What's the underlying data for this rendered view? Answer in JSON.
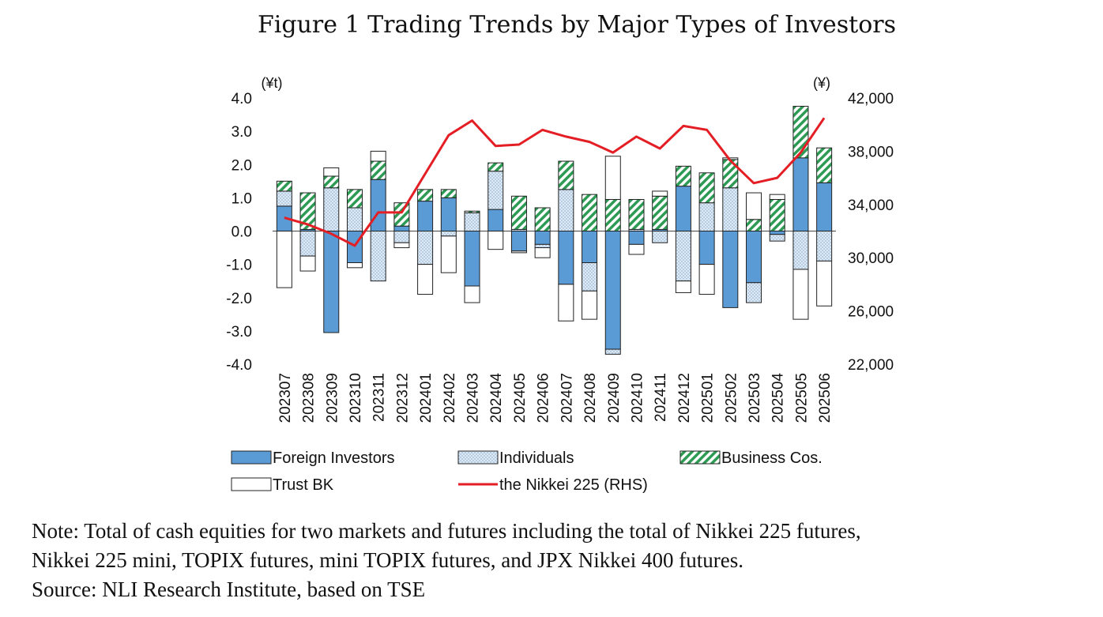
{
  "title": "Figure 1 Trading Trends by Major Types of Investors",
  "note": {
    "line1": "Note: Total of cash equities for two markets and futures including the total of Nikkei 225 futures,",
    "line2": "Nikkei 225 mini, TOPIX futures, mini TOPIX futures, and JPX Nikkei 400 futures.",
    "source": "Source: NLI Research Institute, based on TSE"
  },
  "colors": {
    "foreign": "#5b9bd5",
    "foreign_edge": "#1f1f1f",
    "individuals": "#dde9f5",
    "business_a": "#2e9b55",
    "business_b": "#ffffff",
    "trust": "#ffffff",
    "nikkei": "#e31e24"
  },
  "chart_data": {
    "type": "bar",
    "stacked": true,
    "categories": [
      "202307",
      "202308",
      "202309",
      "202310",
      "202311",
      "202312",
      "202401",
      "202402",
      "202403",
      "202404",
      "202405",
      "202406",
      "202407",
      "202408",
      "202409",
      "202410",
      "202411",
      "202412",
      "202501",
      "202502",
      "202503",
      "202504",
      "202505",
      "202506"
    ],
    "left_axis": {
      "unit": "(¥t)",
      "ylim": [
        -4.0,
        4.0
      ],
      "ticks": [
        "4.0",
        "3.0",
        "2.0",
        "1.0",
        "0.0",
        "-1.0",
        "-2.0",
        "-3.0",
        "-4.0"
      ]
    },
    "right_axis": {
      "unit": "(¥)",
      "ylim": [
        22000,
        42000
      ],
      "ticks": [
        "42,000",
        "38,000",
        "34,000",
        "30,000",
        "26,000",
        "22,000"
      ]
    },
    "series": [
      {
        "name": "Foreign Investors",
        "key": "foreign",
        "values": [
          0.75,
          0.05,
          -3.05,
          -0.95,
          1.55,
          0.15,
          0.9,
          1.0,
          -1.65,
          0.65,
          -0.6,
          -0.4,
          -1.6,
          -0.95,
          -3.55,
          -0.4,
          0.05,
          1.35,
          -1.0,
          -2.3,
          -1.55,
          -0.1,
          2.2,
          1.45
        ]
      },
      {
        "name": "Individuals",
        "key": "individuals",
        "values": [
          0.45,
          -0.75,
          1.3,
          0.7,
          -1.5,
          -0.35,
          -1.0,
          -0.15,
          0.55,
          1.15,
          0.05,
          -0.1,
          1.25,
          -0.85,
          -0.15,
          0.05,
          -0.35,
          -1.5,
          0.85,
          1.3,
          -0.6,
          -0.2,
          -1.15,
          -0.9
        ]
      },
      {
        "name": "Business Cos.",
        "key": "business",
        "values": [
          0.3,
          1.1,
          0.35,
          0.55,
          0.55,
          0.7,
          0.35,
          0.25,
          0.05,
          0.25,
          1.0,
          0.7,
          0.85,
          1.1,
          0.95,
          0.9,
          1.0,
          0.6,
          0.9,
          0.85,
          0.35,
          0.95,
          1.55,
          1.05
        ]
      },
      {
        "name": "Trust BK",
        "key": "trust",
        "values": [
          -1.7,
          -0.45,
          0.25,
          -0.15,
          0.3,
          -0.15,
          -0.9,
          -1.1,
          -0.5,
          -0.55,
          -0.05,
          -0.3,
          -1.1,
          -0.85,
          1.3,
          -0.3,
          0.15,
          -0.35,
          -0.9,
          0.05,
          0.8,
          0.15,
          -1.5,
          -1.35
        ]
      }
    ],
    "line": {
      "name": "the Nikkei 225 (RHS)",
      "axis": "right",
      "values": [
        33000,
        32500,
        31800,
        30900,
        33400,
        33400,
        36300,
        39200,
        40300,
        38400,
        38500,
        39600,
        39100,
        38700,
        37900,
        39100,
        38200,
        39900,
        39600,
        37300,
        35600,
        36000,
        37900,
        40500
      ]
    },
    "legend": [
      {
        "label": "Foreign Investors",
        "key": "foreign"
      },
      {
        "label": "Individuals",
        "key": "individuals"
      },
      {
        "label": "Business Cos.",
        "key": "business"
      },
      {
        "label": "Trust BK",
        "key": "trust"
      },
      {
        "label": "the Nikkei 225 (RHS)",
        "key": "nikkei"
      }
    ],
    "legend_position": "bottom"
  }
}
